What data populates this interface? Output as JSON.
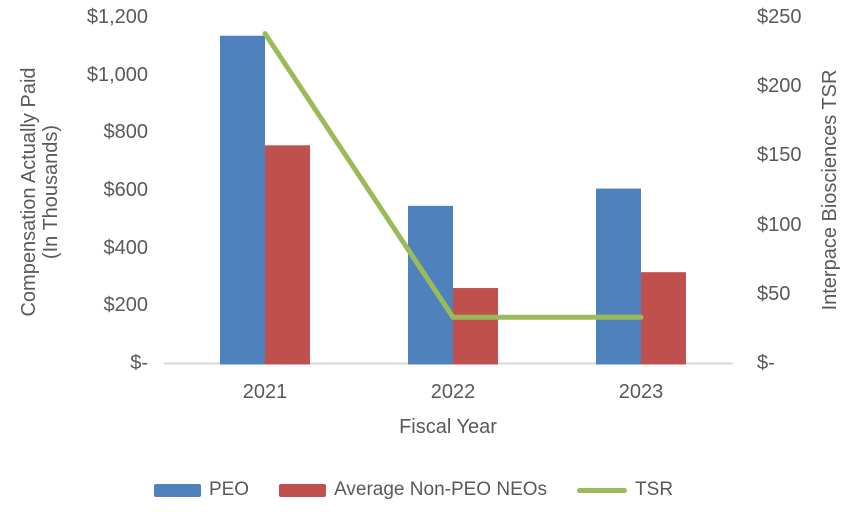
{
  "chart_data": {
    "type": "combo-bar-line",
    "title": "",
    "categories": [
      "2021",
      "2022",
      "2023"
    ],
    "series": [
      {
        "name": "PEO",
        "type": "bar",
        "axis": "left",
        "color": "#4F81BD",
        "values": [
          1135,
          545,
          605
        ]
      },
      {
        "name": "Average Non-PEO NEOs",
        "type": "bar",
        "axis": "left",
        "color": "#C0504D",
        "values": [
          755,
          260,
          315
        ]
      },
      {
        "name": "TSR",
        "type": "line",
        "axis": "right",
        "color": "#9BBB59",
        "values": [
          238,
          33,
          33
        ]
      }
    ],
    "left_axis": {
      "title": "Compensation Actually Paid (In Thousands)",
      "title_lines": [
        "Compensation Actually Paid",
        "(In Thousands)"
      ],
      "tick_labels": [
        "$1,200",
        "$1,000",
        "$800",
        "$600",
        "$400",
        "$200",
        "$-"
      ],
      "min": 0,
      "max": 1200
    },
    "right_axis": {
      "title": "Interpace Biosciences TSR",
      "tick_labels": [
        "$250",
        "$200",
        "$150",
        "$100",
        "$50",
        "$-"
      ],
      "min": 0,
      "max": 250
    },
    "x_axis": {
      "title": "Fiscal Year"
    },
    "legend": {
      "position": "bottom",
      "entries": [
        {
          "label": "PEO",
          "marker": "bar",
          "color": "#4F81BD"
        },
        {
          "label": "Average Non-PEO NEOs",
          "marker": "bar",
          "color": "#C0504D"
        },
        {
          "label": "TSR",
          "marker": "line",
          "color": "#9BBB59"
        }
      ]
    },
    "colors": {
      "text": "#595959",
      "axis_line": "#D9D9D9",
      "background": "#FFFFFF"
    },
    "layout_hints": {
      "grid": false,
      "legend_position": "bottom"
    }
  }
}
